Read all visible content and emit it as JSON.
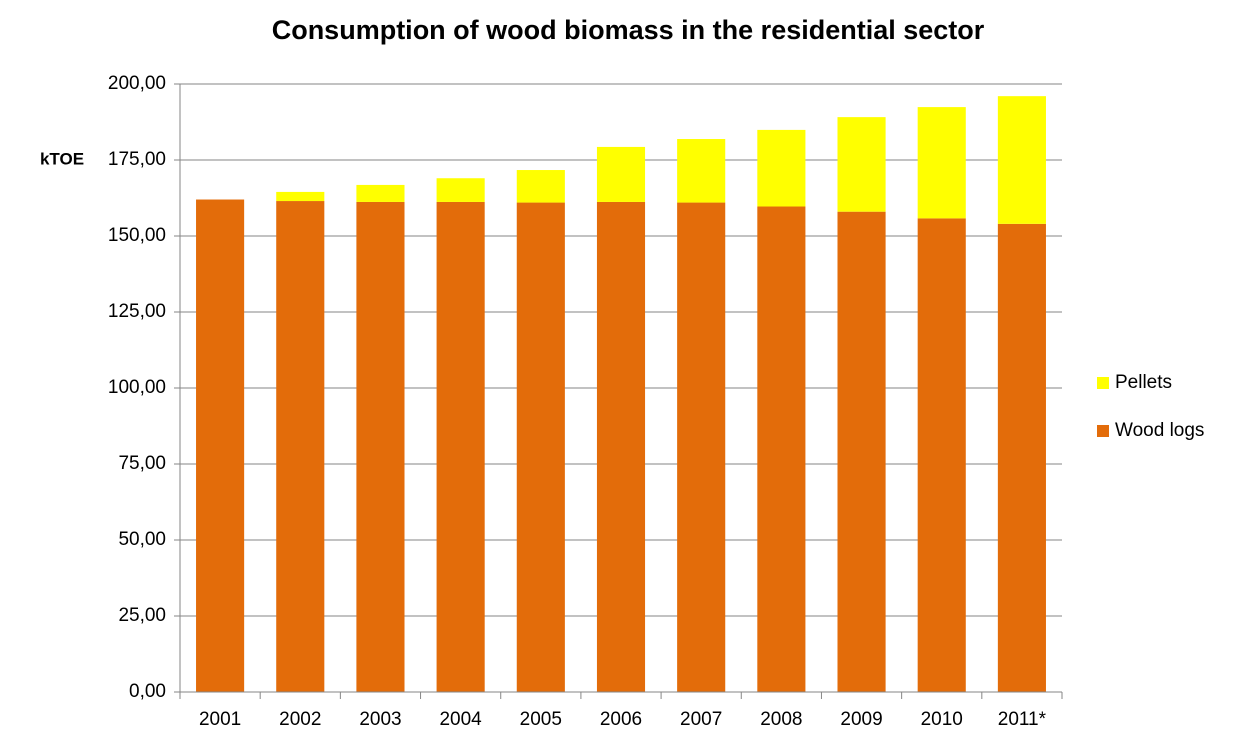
{
  "chart_data": {
    "type": "stacked_bar",
    "title": "Consumption of wood biomass in the residential sector",
    "y_label": "kTOE",
    "categories": [
      "2001",
      "2002",
      "2003",
      "2004",
      "2005",
      "2006",
      "2007",
      "2008",
      "2009",
      "2010",
      "2011*"
    ],
    "series": [
      {
        "name": "Wood logs",
        "color": "#e36c0a",
        "values": [
          162,
          161.5,
          161.2,
          161.2,
          161,
          161.2,
          161,
          159.7,
          158,
          155.8,
          154
        ]
      },
      {
        "name": "Pellets",
        "color": "#ffff00",
        "values": [
          0,
          3,
          5.6,
          7.8,
          10.7,
          18.1,
          20.9,
          25.2,
          31.1,
          36.6,
          42
        ]
      }
    ],
    "ylim": [
      0,
      200
    ],
    "yticks": [
      {
        "value": 0,
        "label": "0,00"
      },
      {
        "value": 25,
        "label": "25,00"
      },
      {
        "value": 50,
        "label": "50,00"
      },
      {
        "value": 75,
        "label": "75,00"
      },
      {
        "value": 100,
        "label": "100,00"
      },
      {
        "value": 125,
        "label": "125,00"
      },
      {
        "value": 150,
        "label": "150,00"
      },
      {
        "value": 175,
        "label": "175,00"
      },
      {
        "value": 200,
        "label": "200,00"
      }
    ],
    "grid": true,
    "legend": "right"
  }
}
